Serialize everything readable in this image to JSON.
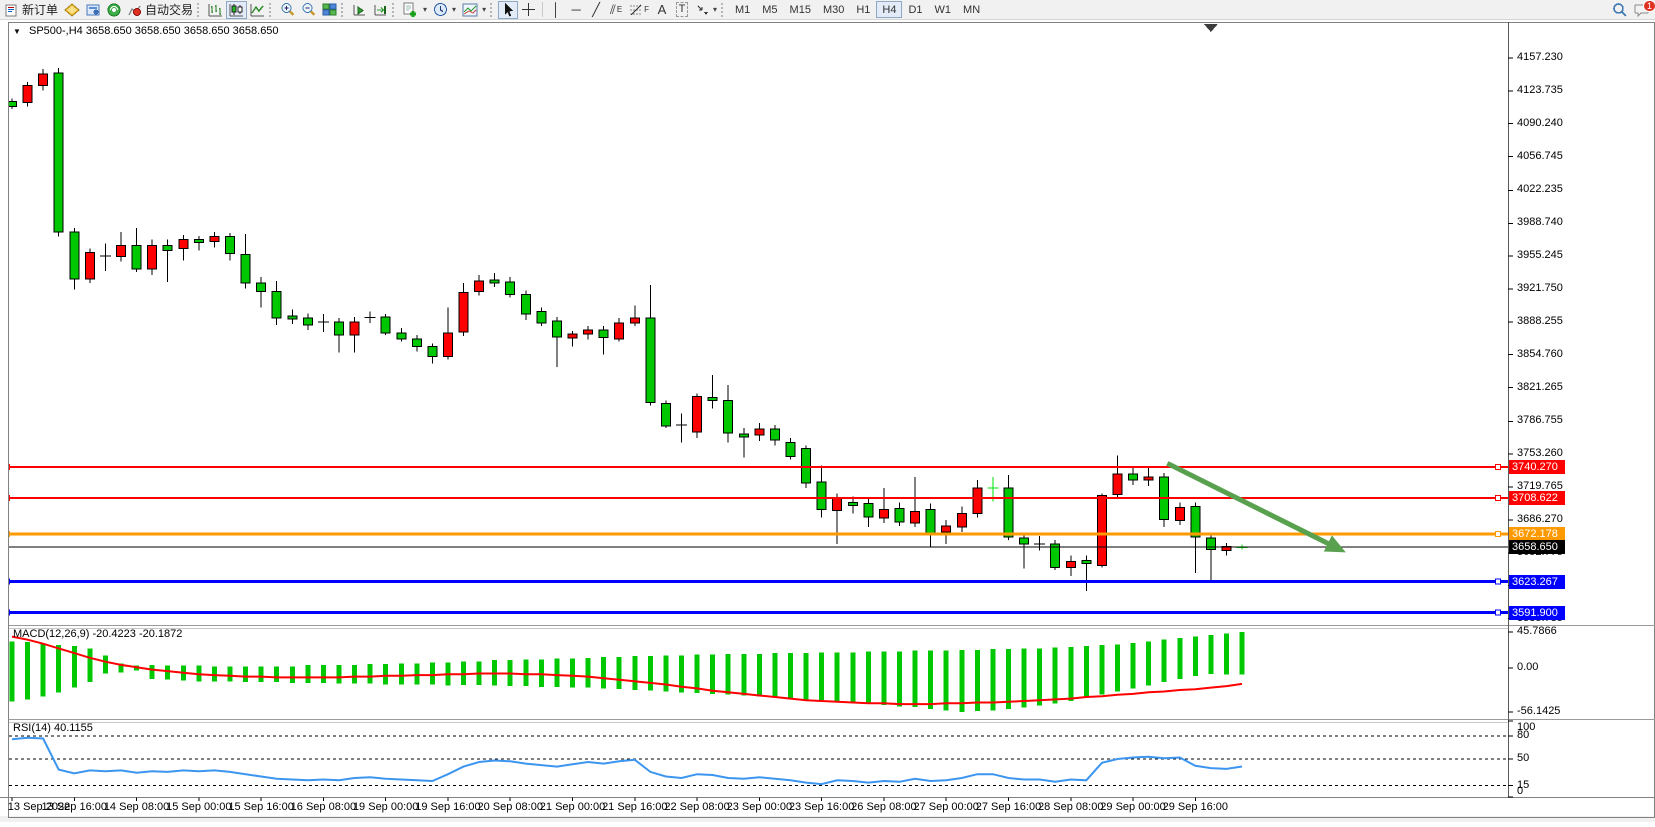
{
  "toolbar": {
    "new_order_label": "新订单",
    "auto_trading_label": "自动交易",
    "tool_letters": {
      "channel": "E",
      "fibonacci": "F",
      "text": "A",
      "label": "T"
    },
    "timeframes": [
      "M1",
      "M5",
      "M15",
      "M30",
      "H1",
      "H4",
      "D1",
      "W1",
      "MN"
    ],
    "active_timeframe": "H4",
    "notification_count": "1"
  },
  "chart_header": {
    "symbol_period": "SP500-,H4",
    "quotes": "3658.650 3658.650 3658.650 3658.650"
  },
  "price_axis": {
    "labels": [
      "4157.230",
      "4123.735",
      "4090.240",
      "4056.745",
      "4022.235",
      "3988.740",
      "3955.245",
      "3921.750",
      "3888.255",
      "3854.760",
      "3821.265",
      "3786.755",
      "3753.260",
      "3719.765",
      "3686.270",
      "3652.775",
      "3619.280",
      "3585.785"
    ]
  },
  "hlines": [
    {
      "price": 3740.27,
      "label": "3740.270",
      "color": "#FF0000",
      "width": 2
    },
    {
      "price": 3708.622,
      "label": "3708.622",
      "color": "#FF0000",
      "width": 2
    },
    {
      "price": 3672.178,
      "label": "3672.178",
      "color": "#FF9900",
      "width": 3
    },
    {
      "price": 3658.65,
      "label": "3658.650",
      "color": "#000000",
      "width": 1,
      "is_price_line": true
    },
    {
      "price": 3623.267,
      "label": "3623.267",
      "color": "#0000FF",
      "width": 3
    },
    {
      "price": 3591.9,
      "label": "3591.900",
      "color": "#0000FF",
      "width": 3
    }
  ],
  "trend_arrow": {
    "color": "#59A14F",
    "from_bar": 74.2,
    "from_price": 3744,
    "to_bar": 84.8,
    "to_price": 3660
  },
  "shift_marker_bar": 77,
  "indicator_panes": {
    "macd": {
      "label": "MACD(12,26,9) -20.4223 -20.1872",
      "scale_labels": [
        "45.7866",
        "0.00",
        "-56.1425"
      ],
      "scale_values": [
        45.7866,
        0,
        -56.1425
      ]
    },
    "rsi": {
      "label": "RSI(14) 40.1155",
      "scale_labels": [
        "100",
        "80",
        "50",
        "15",
        "0"
      ],
      "scale_values": [
        100,
        80,
        50,
        15,
        0
      ],
      "levels": [
        80,
        50,
        15
      ]
    }
  },
  "chart_data": [
    {
      "type": "candlestick",
      "title": "SP500- H4",
      "up_color": "#FF0000",
      "down_color": "#00C800",
      "doji_highlight_color": "#00E000",
      "bars_per_label": 4,
      "x_labels": [
        "13 Sep 2022",
        "13 Sep 16:00",
        "14 Sep 08:00",
        "15 Sep 00:00",
        "15 Sep 16:00",
        "16 Sep 08:00",
        "19 Sep 00:00",
        "19 Sep 16:00",
        "20 Sep 08:00",
        "21 Sep 00:00",
        "21 Sep 16:00",
        "22 Sep 08:00",
        "23 Sep 00:00",
        "23 Sep 16:00",
        "26 Sep 08:00",
        "27 Sep 00:00",
        "27 Sep 16:00",
        "28 Sep 08:00",
        "29 Sep 00:00",
        "29 Sep 16:00"
      ],
      "ylim": [
        3563,
        4180
      ],
      "candles_ohlc": [
        [
          4113,
          4116,
          4105,
          4108
        ],
        [
          4112,
          4133,
          4108,
          4129
        ],
        [
          4129,
          4146,
          4124,
          4141
        ],
        [
          4142,
          4147,
          3975,
          3980
        ],
        [
          3980,
          3984,
          3921,
          3932
        ],
        [
          3932,
          3963,
          3928,
          3959
        ],
        [
          3956,
          3968,
          3940,
          3955
        ],
        [
          3955,
          3980,
          3950,
          3966
        ],
        [
          3966,
          3984,
          3939,
          3942
        ],
        [
          3942,
          3972,
          3936,
          3966
        ],
        [
          3966,
          3972,
          3929,
          3961
        ],
        [
          3963,
          3977,
          3951,
          3972
        ],
        [
          3972,
          3976,
          3961,
          3969
        ],
        [
          3970,
          3980,
          3964,
          3975
        ],
        [
          3975,
          3979,
          3951,
          3958
        ],
        [
          3957,
          3978,
          3922,
          3928
        ],
        [
          3928,
          3934,
          3903,
          3919
        ],
        [
          3919,
          3930,
          3885,
          3892
        ],
        [
          3894,
          3901,
          3886,
          3891
        ],
        [
          3892,
          3897,
          3880,
          3885
        ],
        [
          3888,
          3896,
          3878,
          3888
        ],
        [
          3888,
          3892,
          3857,
          3875
        ],
        [
          3875,
          3893,
          3857,
          3888
        ],
        [
          3893,
          3899,
          3887,
          3892
        ],
        [
          3893,
          3896,
          3875,
          3877
        ],
        [
          3877,
          3882,
          3868,
          3871
        ],
        [
          3871,
          3875,
          3858,
          3863
        ],
        [
          3863,
          3866,
          3846,
          3853
        ],
        [
          3853,
          3903,
          3850,
          3877
        ],
        [
          3878,
          3928,
          3874,
          3918
        ],
        [
          3919,
          3936,
          3915,
          3930
        ],
        [
          3931,
          3938,
          3924,
          3928
        ],
        [
          3929,
          3934,
          3913,
          3916
        ],
        [
          3916,
          3920,
          3890,
          3896
        ],
        [
          3899,
          3903,
          3884,
          3887
        ],
        [
          3889,
          3893,
          3842,
          3873
        ],
        [
          3872,
          3879,
          3863,
          3876
        ],
        [
          3876,
          3884,
          3870,
          3880
        ],
        [
          3880,
          3884,
          3855,
          3872
        ],
        [
          3871,
          3892,
          3868,
          3887
        ],
        [
          3887,
          3905,
          3884,
          3892
        ],
        [
          3892,
          3926,
          3803,
          3806
        ],
        [
          3805,
          3808,
          3780,
          3782
        ],
        [
          3783,
          3795,
          3765,
          3783
        ],
        [
          3776,
          3815,
          3770,
          3812
        ],
        [
          3811,
          3834,
          3800,
          3808
        ],
        [
          3808,
          3824,
          3765,
          3775
        ],
        [
          3774,
          3780,
          3750,
          3771
        ],
        [
          3773,
          3785,
          3767,
          3779
        ],
        [
          3779,
          3783,
          3762,
          3768
        ],
        [
          3765,
          3770,
          3748,
          3751
        ],
        [
          3759,
          3762,
          3719,
          3724
        ],
        [
          3725,
          3742,
          3689,
          3697
        ],
        [
          3696,
          3713,
          3662,
          3709
        ],
        [
          3704,
          3710,
          3693,
          3701
        ],
        [
          3703,
          3708,
          3679,
          3689
        ],
        [
          3688,
          3719,
          3683,
          3697
        ],
        [
          3698,
          3704,
          3680,
          3684
        ],
        [
          3683,
          3730,
          3679,
          3695
        ],
        [
          3697,
          3703,
          3659,
          3673
        ],
        [
          3674,
          3686,
          3662,
          3680
        ],
        [
          3679,
          3700,
          3674,
          3693
        ],
        [
          3693,
          3727,
          3689,
          3719
        ],
        [
          3719,
          3730,
          3705,
          3719,
          "lime"
        ],
        [
          3719,
          3732,
          3666,
          3669
        ],
        [
          3668,
          3673,
          3637,
          3662
        ],
        [
          3662,
          3670,
          3655,
          3662
        ],
        [
          3662,
          3666,
          3635,
          3638
        ],
        [
          3638,
          3650,
          3629,
          3644
        ],
        [
          3645,
          3650,
          3614,
          3642
        ],
        [
          3640,
          3713,
          3638,
          3711
        ],
        [
          3712,
          3752,
          3709,
          3733
        ],
        [
          3733,
          3739,
          3722,
          3727
        ],
        [
          3727,
          3740,
          3721,
          3730
        ],
        [
          3730,
          3734,
          3679,
          3687
        ],
        [
          3686,
          3704,
          3681,
          3699
        ],
        [
          3700,
          3704,
          3632,
          3669
        ],
        [
          3668,
          3672,
          3625,
          3656
        ],
        [
          3655,
          3663,
          3650,
          3659
        ],
        [
          3658,
          3661,
          3656,
          3658.65,
          "lime"
        ]
      ]
    },
    {
      "type": "bar",
      "name": "MACD(12,26,9)",
      "current": "-20.4223 -20.1872",
      "bar_color": "#00C800",
      "signal_color": "#FF0000",
      "ylim": [
        -65,
        52
      ],
      "values_top": [
        34,
        33,
        31,
        29,
        28,
        25,
        16,
        6,
        3,
        4,
        3,
        3,
        3,
        2,
        2,
        2,
        2,
        2,
        2,
        4,
        4,
        4,
        4,
        5,
        5,
        6,
        6,
        7,
        7,
        8,
        8,
        10,
        10,
        11,
        11,
        12,
        12,
        13,
        14,
        14,
        15,
        15,
        16,
        16,
        17,
        17,
        18,
        18,
        18,
        19,
        19,
        19,
        20,
        20,
        20,
        21,
        21,
        21,
        22,
        22,
        22,
        23,
        23,
        24,
        24,
        25,
        25,
        26,
        27,
        28,
        29,
        30,
        32,
        34,
        36,
        38,
        40,
        42,
        44,
        46
      ],
      "values_bottom": [
        -43,
        -40,
        -36,
        -31,
        -25,
        -18,
        -7,
        -6,
        -3,
        -14,
        -15,
        -16,
        -17,
        -17,
        -17,
        -18,
        -18,
        -18,
        -19,
        -19,
        -19,
        -20,
        -20,
        -20,
        -21,
        -21,
        -21,
        -21,
        -22,
        -22,
        -22,
        -22,
        -23,
        -23,
        -24,
        -24,
        -25,
        -25,
        -26,
        -27,
        -28,
        -29,
        -30,
        -31,
        -32,
        -33,
        -34,
        -35,
        -36,
        -37,
        -38,
        -40,
        -41,
        -43,
        -44,
        -46,
        -47,
        -49,
        -50,
        -52,
        -54,
        -56,
        -55,
        -54,
        -52,
        -50,
        -48,
        -45,
        -42,
        -38,
        -34,
        -30,
        -26,
        -22,
        -18,
        -14,
        -10,
        -8,
        -8,
        -8
      ],
      "signal": [
        40,
        36,
        31,
        25,
        19,
        13,
        8,
        4,
        1,
        -2,
        -4,
        -6,
        -8,
        -9,
        -10,
        -11,
        -11,
        -12,
        -12,
        -12,
        -12,
        -12,
        -11,
        -11,
        -10,
        -10,
        -9,
        -9,
        -8,
        -8,
        -7,
        -7,
        -7,
        -8,
        -8,
        -9,
        -10,
        -11,
        -13,
        -15,
        -17,
        -19,
        -21,
        -24,
        -26,
        -29,
        -31,
        -33,
        -35,
        -37,
        -39,
        -41,
        -42,
        -43,
        -44,
        -45,
        -45,
        -46,
        -46,
        -46,
        -45,
        -45,
        -44,
        -44,
        -43,
        -42,
        -41,
        -40,
        -39,
        -37,
        -36,
        -34,
        -33,
        -31,
        -30,
        -28,
        -27,
        -25,
        -23,
        -20.2
      ]
    },
    {
      "type": "line",
      "name": "RSI(14)",
      "current": 40.1155,
      "line_color": "#3C96F0",
      "ylim": [
        0,
        100
      ],
      "levels": [
        80,
        50,
        15
      ],
      "values": [
        76,
        78,
        77,
        36,
        31,
        35,
        34,
        35,
        32,
        34,
        33,
        35,
        34,
        35,
        33,
        30,
        27,
        24,
        23,
        22,
        23,
        22,
        25,
        26,
        24,
        23,
        22,
        21,
        30,
        40,
        46,
        48,
        47,
        44,
        42,
        40,
        43,
        46,
        44,
        47,
        49,
        33,
        27,
        25,
        30,
        29,
        25,
        24,
        26,
        24,
        22,
        19,
        17,
        22,
        21,
        19,
        21,
        20,
        24,
        21,
        22,
        25,
        30,
        30,
        25,
        23,
        23,
        20,
        23,
        22,
        45,
        50,
        52,
        53,
        51,
        52,
        41,
        38,
        37,
        40.12
      ]
    }
  ]
}
